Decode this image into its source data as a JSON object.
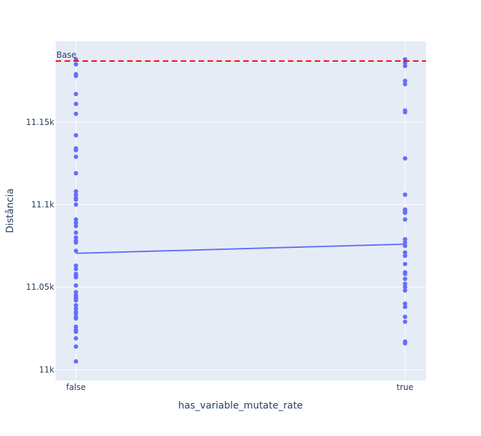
{
  "chart_data": {
    "type": "scatter",
    "xlabel": "has_variable_mutate_rate",
    "ylabel": "Distância",
    "categories": [
      "false",
      "true"
    ],
    "y_ticks": [
      11000,
      11050,
      11100,
      11150
    ],
    "y_tick_labels": [
      "11k",
      "11.05k",
      "11.1k",
      "11.15k"
    ],
    "ylim": [
      10993.5,
      11199
    ],
    "grid": true,
    "colors": {
      "plot_background": "#e5ecf6",
      "grid": "#ffffff",
      "points": "#636efa",
      "mean_line": "#636efa",
      "baseline": "#ff0000"
    },
    "baseline": {
      "value": 11187,
      "label": "Base"
    },
    "mean_line": {
      "values": [
        11070.5,
        11076
      ]
    },
    "series": [
      {
        "category": "false",
        "values": [
          11188,
          11185,
          11179,
          11178,
          11167,
          11161,
          11155,
          11142,
          11134,
          11133,
          11129,
          11119,
          11108,
          11106,
          11104,
          11103,
          11100,
          11091,
          11089,
          11087,
          11083,
          11080,
          11078,
          11077,
          11072,
          11063,
          11061,
          11058,
          11057,
          11056,
          11051,
          11047,
          11045,
          11044,
          11043,
          11042,
          11039,
          11037,
          11035,
          11034,
          11032,
          11031,
          11026,
          11024,
          11023,
          11019,
          11014,
          11005
        ]
      },
      {
        "category": "true",
        "values": [
          11188,
          11186,
          11184,
          11175,
          11173,
          11157,
          11156,
          11128,
          11106,
          11097,
          11096,
          11095,
          11091,
          11079,
          11077,
          11075,
          11071,
          11069,
          11064,
          11059,
          11058,
          11055,
          11052,
          11050,
          11048,
          11040,
          11038,
          11032,
          11029,
          11017,
          11016
        ]
      }
    ]
  }
}
